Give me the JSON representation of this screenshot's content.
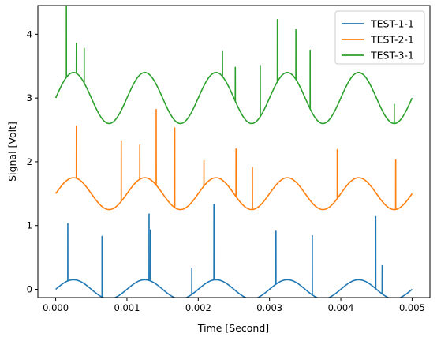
{
  "chart_data": {
    "type": "line",
    "xlabel": "Time [Second]",
    "ylabel": "Signal [Volt]",
    "xlim": [
      -0.00025,
      0.00525
    ],
    "ylim": [
      -0.13,
      4.45
    ],
    "xticks": [
      0.0,
      0.001,
      0.002,
      0.003,
      0.004,
      0.005
    ],
    "xtick_labels": [
      "0.000",
      "0.001",
      "0.002",
      "0.003",
      "0.004",
      "0.005"
    ],
    "yticks": [
      0,
      1,
      2,
      3,
      4
    ],
    "ytick_labels": [
      "0",
      "1",
      "2",
      "3",
      "4"
    ],
    "grid": false,
    "legend_position": "top-right",
    "x_range": [
      0.0,
      0.005
    ],
    "series": [
      {
        "name": "TEST-1-1",
        "color": "#1f77b4",
        "offset": 0.0,
        "amplitude": 0.15,
        "period": 0.001,
        "spikes": [
          [
            0.00017,
            1.03
          ],
          [
            0.00065,
            0.83
          ],
          [
            0.00131,
            1.18
          ],
          [
            0.00133,
            0.93
          ],
          [
            0.00191,
            0.33
          ],
          [
            0.00222,
            1.33
          ],
          [
            0.00309,
            0.91
          ],
          [
            0.0036,
            0.84
          ],
          [
            0.00449,
            1.14
          ],
          [
            0.00458,
            0.37
          ]
        ]
      },
      {
        "name": "TEST-2-1",
        "color": "#ff7f0e",
        "offset": 1.5,
        "amplitude": 0.25,
        "period": 0.001,
        "spikes": [
          [
            0.00029,
            2.56
          ],
          [
            0.00092,
            2.33
          ],
          [
            0.00118,
            2.26
          ],
          [
            0.00141,
            2.82
          ],
          [
            0.00167,
            2.53
          ],
          [
            0.00208,
            2.02
          ],
          [
            0.00253,
            2.2
          ],
          [
            0.00276,
            1.91
          ],
          [
            0.00395,
            2.19
          ],
          [
            0.00477,
            2.03
          ]
        ]
      },
      {
        "name": "TEST-3-1",
        "color": "#2ca02c",
        "offset": 3.0,
        "amplitude": 0.4,
        "period": 0.001,
        "spikes": [
          [
            0.00015,
            4.45
          ],
          [
            0.00029,
            3.86
          ],
          [
            0.0004,
            3.78
          ],
          [
            0.00234,
            3.74
          ],
          [
            0.00252,
            3.48
          ],
          [
            0.00287,
            3.51
          ],
          [
            0.00311,
            4.23
          ],
          [
            0.00337,
            4.07
          ],
          [
            0.00357,
            3.75
          ],
          [
            0.00475,
            2.9
          ]
        ]
      }
    ]
  }
}
